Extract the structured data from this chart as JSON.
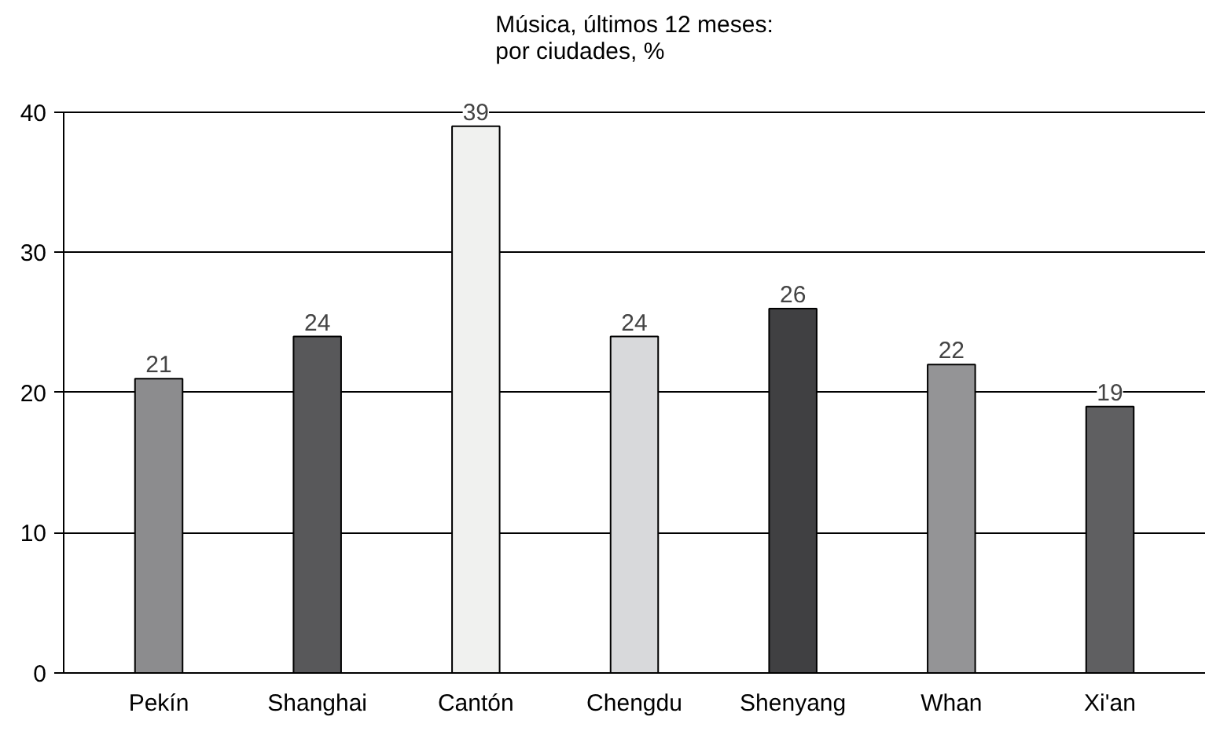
{
  "chart_data": {
    "type": "bar",
    "title": "Música, últimos 12 meses:\npor ciudades, %",
    "categories": [
      "Pekín",
      "Shanghai",
      "Cantón",
      "Chengdu",
      "Shenyang",
      "Whan",
      "Xi'an"
    ],
    "values": [
      21,
      24,
      39,
      24,
      26,
      22,
      19
    ],
    "colors": [
      "#8c8c8e",
      "#58585a",
      "#f0f1ef",
      "#d8d9db",
      "#404042",
      "#949496",
      "#5f5f61"
    ],
    "ylim": [
      0,
      40
    ],
    "yticks": [
      0,
      10,
      20,
      30,
      40
    ],
    "grid": "y",
    "data_labels": true
  }
}
